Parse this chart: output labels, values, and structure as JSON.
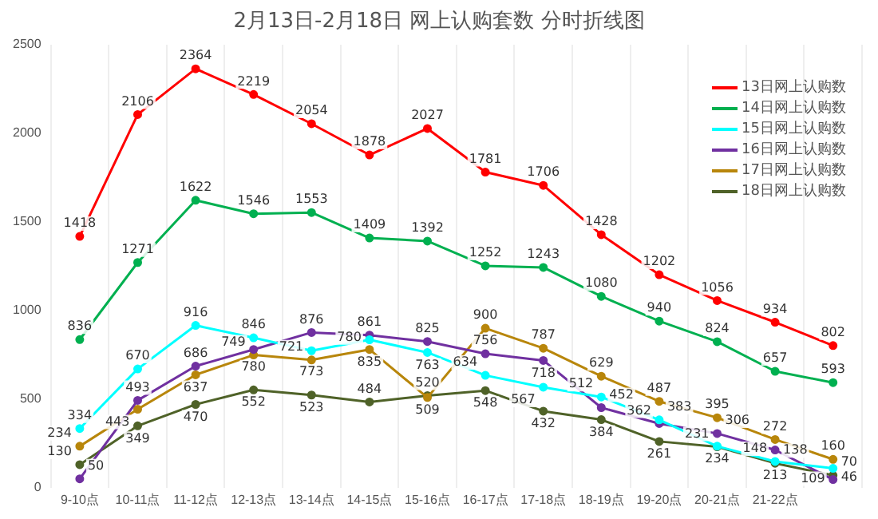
{
  "chart_data": {
    "type": "line",
    "title": "2月13日-2月18日 网上认购套数 分时折线图",
    "categories": [
      "9-10点",
      "10-11点",
      "11-12点",
      "12-13点",
      "13-14点",
      "14-15点",
      "15-16点",
      "16-17点",
      "17-18点",
      "18-19点",
      "19-20点",
      "20-21点",
      "21-22点",
      null
    ],
    "series": [
      {
        "name": "13日网上认购数",
        "color": "#ff0000",
        "values": [
          1418,
          2106,
          2364,
          2219,
          2054,
          1878,
          2027,
          1781,
          1706,
          1428,
          1202,
          1056,
          934,
          802
        ]
      },
      {
        "name": "14日网上认购数",
        "color": "#00b050",
        "values": [
          836,
          1271,
          1622,
          1546,
          1553,
          1409,
          1392,
          1252,
          1243,
          1080,
          940,
          824,
          657,
          593
        ]
      },
      {
        "name": "15日网上认购数",
        "color": "#00ffff",
        "values": [
          334,
          670,
          916,
          846,
          773,
          835,
          763,
          634,
          567,
          512,
          383,
          234,
          148,
          109
        ]
      },
      {
        "name": "16日网上认购数",
        "color": "#7030a0",
        "values": [
          50,
          493,
          686,
          780,
          876,
          861,
          825,
          756,
          718,
          452,
          362,
          306,
          213,
          46
        ]
      },
      {
        "name": "17日网上认购数",
        "color": "#b8860b",
        "values": [
          234,
          443,
          637,
          749,
          721,
          780,
          509,
          900,
          787,
          629,
          487,
          395,
          272,
          160
        ]
      },
      {
        "name": "18日网上认购数",
        "color": "#4f6228",
        "values": [
          130,
          349,
          470,
          552,
          523,
          484,
          520,
          548,
          432,
          384,
          261,
          231,
          138,
          70
        ]
      }
    ],
    "ylim": [
      0,
      2500
    ],
    "yticks": [
      0,
      500,
      1000,
      1500,
      2000,
      2500
    ],
    "grid": "x",
    "legend": "top right",
    "marker": "circle",
    "line_style": "solid",
    "data_labels": true
  }
}
